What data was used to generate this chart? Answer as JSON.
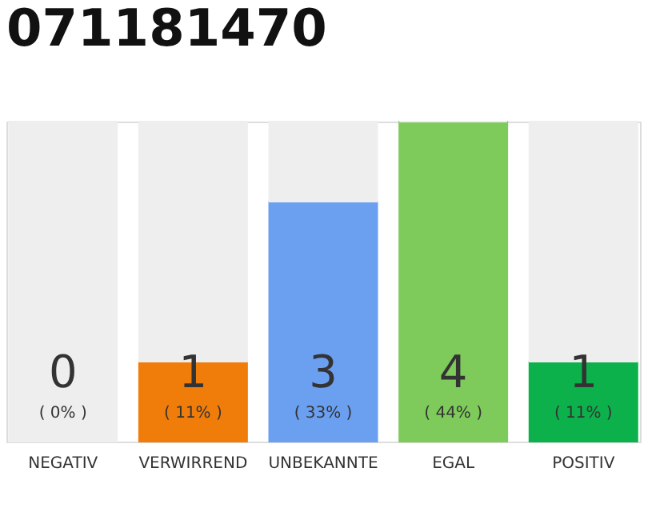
{
  "chart_data": {
    "type": "bar",
    "title": "071181470",
    "stacked": true,
    "categories": [
      "NEGATIV",
      "VERWIRREND",
      "UNBEKANNTE",
      "EGAL",
      "POSITIV"
    ],
    "series": [
      {
        "colors": [
          "#444444",
          "#f07d0a",
          "#6b9ff0",
          "#7ecb5c",
          "#0db14b"
        ],
        "values": [
          0,
          1,
          3,
          4,
          1
        ],
        "value_labels": [
          "0",
          "1",
          "3",
          "4",
          "1"
        ]
      },
      {
        "color": "#eeeeee",
        "values": [
          4,
          3,
          1,
          0,
          3
        ]
      }
    ],
    "annotations": [
      "( 0% )",
      "( 11% )",
      "( 33% )",
      "( 44% )",
      "( 11% )"
    ]
  }
}
